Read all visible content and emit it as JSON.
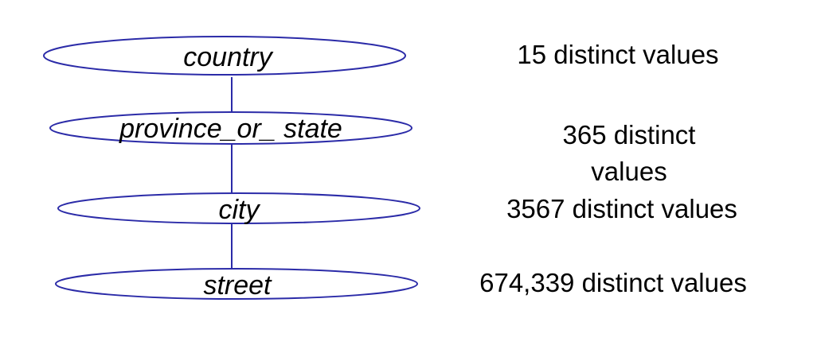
{
  "hierarchy": {
    "levels": [
      {
        "name": "country",
        "count_text": [
          "15 distinct values"
        ]
      },
      {
        "name": "province_or_ state",
        "count_text": [
          "365 distinct",
          "values"
        ]
      },
      {
        "name": "city",
        "count_text": [
          "3567 distinct values"
        ]
      },
      {
        "name": "street",
        "count_text": [
          "674,339 distinct values"
        ]
      }
    ]
  },
  "colors": {
    "ellipse_stroke": "#2b2ba8",
    "connector": "#2b2ba8",
    "text": "#000000"
  }
}
